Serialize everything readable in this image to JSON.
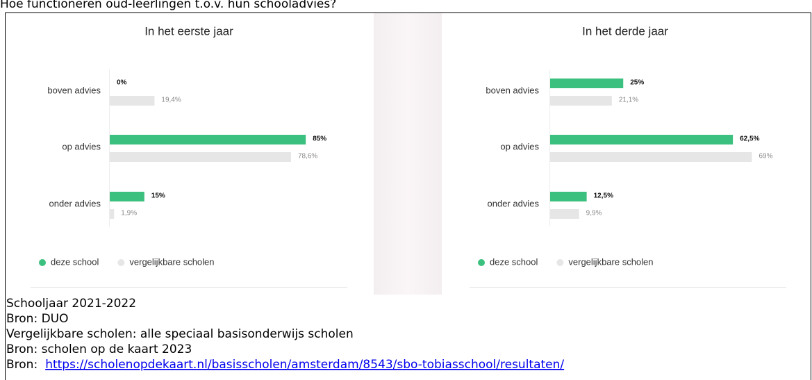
{
  "heading": "Hoe functioneren oud-leerlingen t.o.v. hun schooladvies?",
  "chart_data": [
    {
      "type": "bar",
      "orientation": "horizontal",
      "title": "In het eerste jaar",
      "categories": [
        "boven advies",
        "op advies",
        "onder advies"
      ],
      "series": [
        {
          "name": "deze school",
          "color": "#3cc07f",
          "values": [
            0,
            85,
            15
          ],
          "value_labels": [
            "0%",
            "85%",
            "15%"
          ]
        },
        {
          "name": "vergelijkbare scholen",
          "color": "#e6e6e6",
          "values": [
            19.4,
            78.6,
            1.9
          ],
          "value_labels": [
            "19,4%",
            "78,6%",
            "1,9%"
          ]
        }
      ]
    },
    {
      "type": "bar",
      "orientation": "horizontal",
      "title": "In het derde jaar",
      "categories": [
        "boven advies",
        "op advies",
        "onder advies"
      ],
      "series": [
        {
          "name": "deze school",
          "color": "#3cc07f",
          "values": [
            25,
            62.5,
            12.5
          ],
          "value_labels": [
            "25%",
            "62,5%",
            "12,5%"
          ]
        },
        {
          "name": "vergelijkbare scholen",
          "color": "#e6e6e6",
          "values": [
            21.1,
            69,
            9.9
          ],
          "value_labels": [
            "21,1%",
            "69%",
            "9,9%"
          ]
        }
      ]
    }
  ],
  "footer": [
    "Schooljaar 2021-2022",
    "Bron: DUO",
    "Vergelijkbare scholen: alle speciaal basisonderwijs scholen",
    "Bron: scholen op de kaart 2023"
  ],
  "link": {
    "label": "Bron:",
    "url": "https://scholenopdekaart.nl/basisscholen/amsterdam/8543/sbo-tobiasschool/resultaten/"
  }
}
